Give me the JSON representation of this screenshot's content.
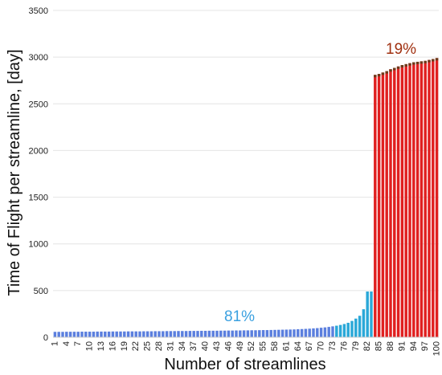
{
  "chart_data": {
    "type": "bar",
    "title": "",
    "xlabel": "Number of streamlines",
    "ylabel": "Time of Flight per streamline, [day]",
    "ylim": [
      0,
      3500
    ],
    "yticks": [
      0,
      500,
      1000,
      1500,
      2000,
      2500,
      3000,
      3500
    ],
    "xtick_labels": [
      "1",
      "4",
      "7",
      "10",
      "13",
      "16",
      "19",
      "22",
      "25",
      "28",
      "31",
      "34",
      "37",
      "40",
      "43",
      "46",
      "49",
      "52",
      "55",
      "58",
      "61",
      "64",
      "67",
      "70",
      "73",
      "76",
      "79",
      "82",
      "85",
      "88",
      "91",
      "94",
      "97",
      "100"
    ],
    "grid": true,
    "x": [
      1,
      2,
      3,
      4,
      5,
      6,
      7,
      8,
      9,
      10,
      11,
      12,
      13,
      14,
      15,
      16,
      17,
      18,
      19,
      20,
      21,
      22,
      23,
      24,
      25,
      26,
      27,
      28,
      29,
      30,
      31,
      32,
      33,
      34,
      35,
      36,
      37,
      38,
      39,
      40,
      41,
      42,
      43,
      44,
      45,
      46,
      47,
      48,
      49,
      50,
      51,
      52,
      53,
      54,
      55,
      56,
      57,
      58,
      59,
      60,
      61,
      62,
      63,
      64,
      65,
      66,
      67,
      68,
      69,
      70,
      71,
      72,
      73,
      74,
      75,
      76,
      77,
      78,
      79,
      80,
      81,
      82,
      83,
      84,
      85,
      86,
      87,
      88,
      89,
      90,
      91,
      92,
      93,
      94,
      95,
      96,
      97,
      98,
      99,
      100
    ],
    "values": [
      58,
      58,
      58,
      59,
      59,
      59,
      59,
      60,
      60,
      60,
      60,
      61,
      61,
      61,
      61,
      62,
      62,
      62,
      62,
      63,
      63,
      63,
      63,
      64,
      64,
      64,
      65,
      65,
      65,
      66,
      66,
      66,
      67,
      67,
      67,
      68,
      68,
      68,
      69,
      69,
      70,
      70,
      70,
      71,
      71,
      72,
      72,
      73,
      73,
      74,
      74,
      75,
      75,
      76,
      77,
      77,
      78,
      79,
      80,
      81,
      82,
      83,
      84,
      86,
      88,
      90,
      92,
      95,
      98,
      102,
      106,
      111,
      117,
      124,
      132,
      142,
      155,
      175,
      200,
      230,
      300,
      490,
      490,
      2810,
      2820,
      2835,
      2850,
      2870,
      2885,
      2900,
      2915,
      2925,
      2935,
      2945,
      2950,
      2955,
      2960,
      2970,
      2980,
      2990
    ],
    "colors": {
      "low": "#5b7fde",
      "mid": "#2aa8d8",
      "high": "#e02020"
    },
    "annotations": [
      {
        "text": "81%",
        "color": "#3aa0e0"
      },
      {
        "text": "19%",
        "color": "#a03010"
      }
    ]
  }
}
